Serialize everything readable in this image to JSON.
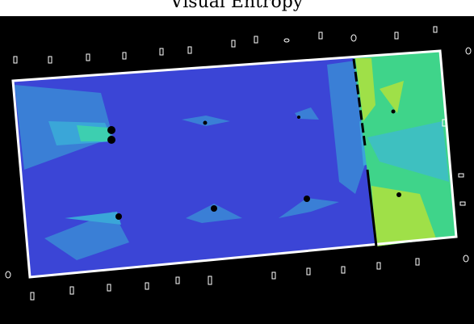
{
  "title": "Visual Entropy"
}
